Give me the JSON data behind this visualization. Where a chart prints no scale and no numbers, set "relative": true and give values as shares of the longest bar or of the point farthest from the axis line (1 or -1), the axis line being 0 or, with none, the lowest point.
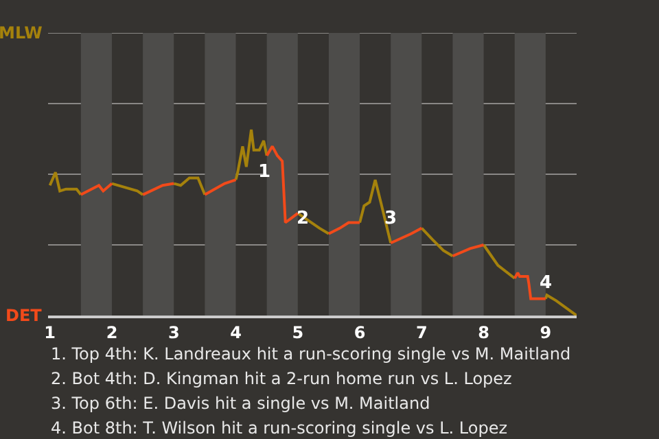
{
  "chart_data": {
    "type": "line",
    "relative": true,
    "x": [
      1.0,
      1.09,
      1.16,
      1.26,
      1.43,
      1.5,
      1.79,
      1.86,
      2.0,
      2.41,
      2.5,
      2.82,
      3.0,
      3.11,
      3.25,
      3.39,
      3.5,
      3.82,
      4.0,
      4.03,
      4.11,
      4.17,
      4.25,
      4.29,
      4.38,
      4.45,
      4.5,
      4.59,
      4.67,
      4.75,
      4.8,
      4.88,
      5.0,
      5.35,
      5.5,
      5.68,
      5.82,
      6.0,
      6.07,
      6.16,
      6.25,
      6.34,
      6.5,
      6.83,
      7.0,
      7.17,
      7.35,
      7.5,
      7.78,
      8.0,
      8.23,
      8.5,
      8.55,
      8.58,
      8.71,
      8.73,
      8.76,
      8.79,
      9.0,
      9.02,
      9.17,
      9.5
    ],
    "series": [
      {
        "color": "#a5820c",
        "values": [
          0.7,
          0.77,
          0.67,
          0.68,
          0.68,
          0.65,
          null,
          null,
          0.71,
          0.67,
          0.65,
          null,
          0.71,
          0.7,
          0.74,
          0.74,
          0.65,
          null,
          0.73,
          0.77,
          0.91,
          0.8,
          1,
          0.89,
          0.89,
          0.94,
          0.86,
          null,
          null,
          null,
          null,
          null,
          0.55,
          0.47,
          0.44,
          null,
          null,
          0.5,
          0.59,
          0.61,
          0.73,
          0.61,
          0.39,
          null,
          0.47,
          0.41,
          0.35,
          0.32,
          null,
          0.38,
          0.27,
          0.2,
          null,
          null,
          null,
          null,
          null,
          null,
          0.09,
          0.11,
          0.08,
          0
        ]
      },
      {
        "color": "#f24a1a",
        "values": [
          null,
          null,
          null,
          null,
          null,
          0.65,
          0.7,
          0.67,
          0.71,
          null,
          0.65,
          0.7,
          0.71,
          null,
          null,
          null,
          0.65,
          0.71,
          0.73,
          null,
          null,
          null,
          null,
          null,
          null,
          null,
          0.86,
          0.91,
          0.86,
          0.83,
          0.5,
          0.52,
          0.55,
          null,
          0.44,
          0.47,
          0.5,
          0.5,
          null,
          null,
          null,
          null,
          0.39,
          0.44,
          0.47,
          null,
          null,
          0.32,
          0.36,
          0.38,
          null,
          0.2,
          0.23,
          0.21,
          0.21,
          0.17,
          0.09,
          0.09,
          0.09,
          null,
          null,
          null
        ]
      }
    ],
    "xlim": [
      0.97,
      9.5
    ],
    "xticks": [
      1,
      2,
      3,
      4,
      5,
      6,
      7,
      8,
      9
    ],
    "ref_lines": [
      {
        "axis": "y",
        "value": 0.38,
        "color": "#8a8886"
      },
      {
        "axis": "y",
        "value": 0.76,
        "color": "#8a8886"
      },
      {
        "axis": "y",
        "value": 1.14,
        "color": "#8a8886"
      },
      {
        "axis": "y",
        "value": 1.52,
        "color": "#8a8886"
      }
    ],
    "bands": [
      {
        "axis": "x",
        "from": 1.5,
        "to": 2,
        "color": "#4d4c4a"
      },
      {
        "axis": "x",
        "from": 2.5,
        "to": 3,
        "color": "#4d4c4a"
      },
      {
        "axis": "x",
        "from": 3.5,
        "to": 4,
        "color": "#4d4c4a"
      },
      {
        "axis": "x",
        "from": 4.5,
        "to": 5,
        "color": "#4d4c4a"
      },
      {
        "axis": "x",
        "from": 5.5,
        "to": 6,
        "color": "#4d4c4a"
      },
      {
        "axis": "x",
        "from": 6.5,
        "to": 7,
        "color": "#4d4c4a"
      },
      {
        "axis": "x",
        "from": 7.5,
        "to": 8,
        "color": "#4d4c4a"
      },
      {
        "axis": "x",
        "from": 8.5,
        "to": 9,
        "color": "#4d4c4a"
      }
    ],
    "annotations": [
      "MLW",
      "DET",
      {
        "text": "1",
        "x": 4.26,
        "y": 0.86
      },
      {
        "text": "2",
        "x": 4.86,
        "y": 0.61
      },
      {
        "text": "3",
        "x": 6.29,
        "y": 0.61
      },
      {
        "text": "4",
        "x": 8.78,
        "y": 0.08
      },
      "1. Top 4th: K. Landreaux hit a run-scoring single vs M. Maitland",
      "2. Bot 4th: D. Kingman hit a 2-run home run vs L. Lopez",
      "3. Top 6th: E. Davis hit a single vs M. Maitland",
      "4. Bot 8th: T. Wilson hit a run-scoring single vs L. Lopez"
    ]
  }
}
